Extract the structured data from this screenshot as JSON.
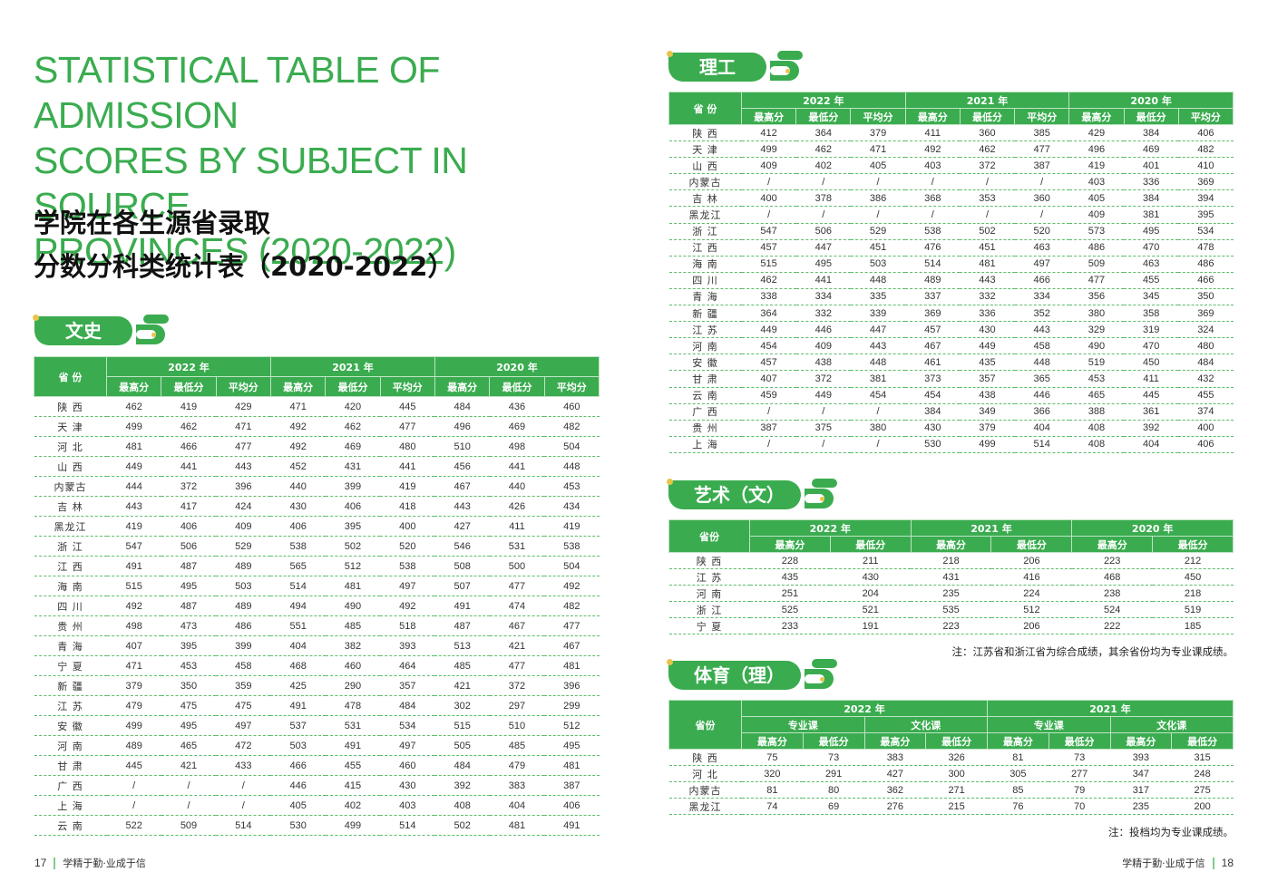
{
  "title": {
    "en": "STATISTICAL TABLE OF ADMISSION SCORES BY SUBJECT IN SOURCE PROVINCES (2020-2022)",
    "en_lines": [
      "STATISTICAL TABLE OF ADMISSION",
      "SCORES BY SUBJECT IN SOURCE",
      "PROVINCES (2020-2022)"
    ],
    "cn_lines": [
      "学院在各生源省录取",
      "分数分科类统计表（2020-2022）"
    ]
  },
  "colors": {
    "accent": "#3aac4f",
    "dot": "#e8c44a",
    "row_divider": "#5cbc69"
  },
  "labels": {
    "province": "省 份",
    "province_compact": "省份",
    "max": "最高分",
    "min": "最低分",
    "avg": "平均分",
    "major": "专业课",
    "culture": "文化课",
    "y2022": "2022 年",
    "y2021": "2021 年",
    "y2020": "2020 年"
  },
  "sections": {
    "wenshi": {
      "title": "文史",
      "rows": [
        [
          "陕 西",
          "462",
          "419",
          "429",
          "471",
          "420",
          "445",
          "484",
          "436",
          "460"
        ],
        [
          "天 津",
          "499",
          "462",
          "471",
          "492",
          "462",
          "477",
          "496",
          "469",
          "482"
        ],
        [
          "河 北",
          "481",
          "466",
          "477",
          "492",
          "469",
          "480",
          "510",
          "498",
          "504"
        ],
        [
          "山 西",
          "449",
          "441",
          "443",
          "452",
          "431",
          "441",
          "456",
          "441",
          "448"
        ],
        [
          "内蒙古",
          "444",
          "372",
          "396",
          "440",
          "399",
          "419",
          "467",
          "440",
          "453"
        ],
        [
          "吉 林",
          "443",
          "417",
          "424",
          "430",
          "406",
          "418",
          "443",
          "426",
          "434"
        ],
        [
          "黑龙江",
          "419",
          "406",
          "409",
          "406",
          "395",
          "400",
          "427",
          "411",
          "419"
        ],
        [
          "浙 江",
          "547",
          "506",
          "529",
          "538",
          "502",
          "520",
          "546",
          "531",
          "538"
        ],
        [
          "江 西",
          "491",
          "487",
          "489",
          "565",
          "512",
          "538",
          "508",
          "500",
          "504"
        ],
        [
          "海 南",
          "515",
          "495",
          "503",
          "514",
          "481",
          "497",
          "507",
          "477",
          "492"
        ],
        [
          "四 川",
          "492",
          "487",
          "489",
          "494",
          "490",
          "492",
          "491",
          "474",
          "482"
        ],
        [
          "贵 州",
          "498",
          "473",
          "486",
          "551",
          "485",
          "518",
          "487",
          "467",
          "477"
        ],
        [
          "青 海",
          "407",
          "395",
          "399",
          "404",
          "382",
          "393",
          "513",
          "421",
          "467"
        ],
        [
          "宁 夏",
          "471",
          "453",
          "458",
          "468",
          "460",
          "464",
          "485",
          "477",
          "481"
        ],
        [
          "新 疆",
          "379",
          "350",
          "359",
          "425",
          "290",
          "357",
          "421",
          "372",
          "396"
        ],
        [
          "江 苏",
          "479",
          "475",
          "475",
          "491",
          "478",
          "484",
          "302",
          "297",
          "299"
        ],
        [
          "安 徽",
          "499",
          "495",
          "497",
          "537",
          "531",
          "534",
          "515",
          "510",
          "512"
        ],
        [
          "河 南",
          "489",
          "465",
          "472",
          "503",
          "491",
          "497",
          "505",
          "485",
          "495"
        ],
        [
          "甘 肃",
          "445",
          "421",
          "433",
          "466",
          "455",
          "460",
          "484",
          "479",
          "481"
        ],
        [
          "广 西",
          "/",
          "/",
          "/",
          "446",
          "415",
          "430",
          "392",
          "383",
          "387"
        ],
        [
          "上 海",
          "/",
          "/",
          "/",
          "405",
          "402",
          "403",
          "408",
          "404",
          "406"
        ],
        [
          "云 南",
          "522",
          "509",
          "514",
          "530",
          "499",
          "514",
          "502",
          "481",
          "491"
        ]
      ]
    },
    "ligong": {
      "title": "理工",
      "rows": [
        [
          "陕 西",
          "412",
          "364",
          "379",
          "411",
          "360",
          "385",
          "429",
          "384",
          "406"
        ],
        [
          "天 津",
          "499",
          "462",
          "471",
          "492",
          "462",
          "477",
          "496",
          "469",
          "482"
        ],
        [
          "山 西",
          "409",
          "402",
          "405",
          "403",
          "372",
          "387",
          "419",
          "401",
          "410"
        ],
        [
          "内蒙古",
          "/",
          "/",
          "/",
          "/",
          "/",
          "/",
          "403",
          "336",
          "369"
        ],
        [
          "吉 林",
          "400",
          "378",
          "386",
          "368",
          "353",
          "360",
          "405",
          "384",
          "394"
        ],
        [
          "黑龙江",
          "/",
          "/",
          "/",
          "/",
          "/",
          "/",
          "409",
          "381",
          "395"
        ],
        [
          "浙 江",
          "547",
          "506",
          "529",
          "538",
          "502",
          "520",
          "573",
          "495",
          "534"
        ],
        [
          "江 西",
          "457",
          "447",
          "451",
          "476",
          "451",
          "463",
          "486",
          "470",
          "478"
        ],
        [
          "海 南",
          "515",
          "495",
          "503",
          "514",
          "481",
          "497",
          "509",
          "463",
          "486"
        ],
        [
          "四 川",
          "462",
          "441",
          "448",
          "489",
          "443",
          "466",
          "477",
          "455",
          "466"
        ],
        [
          "青 海",
          "338",
          "334",
          "335",
          "337",
          "332",
          "334",
          "356",
          "345",
          "350"
        ],
        [
          "新 疆",
          "364",
          "332",
          "339",
          "369",
          "336",
          "352",
          "380",
          "358",
          "369"
        ],
        [
          "江 苏",
          "449",
          "446",
          "447",
          "457",
          "430",
          "443",
          "329",
          "319",
          "324"
        ],
        [
          "河 南",
          "454",
          "409",
          "443",
          "467",
          "449",
          "458",
          "490",
          "470",
          "480"
        ],
        [
          "安 徽",
          "457",
          "438",
          "448",
          "461",
          "435",
          "448",
          "519",
          "450",
          "484"
        ],
        [
          "甘 肃",
          "407",
          "372",
          "381",
          "373",
          "357",
          "365",
          "453",
          "411",
          "432"
        ],
        [
          "云 南",
          "459",
          "449",
          "454",
          "454",
          "438",
          "446",
          "465",
          "445",
          "455"
        ],
        [
          "广 西",
          "/",
          "/",
          "/",
          "384",
          "349",
          "366",
          "388",
          "361",
          "374"
        ],
        [
          "贵 州",
          "387",
          "375",
          "380",
          "430",
          "379",
          "404",
          "408",
          "392",
          "400"
        ],
        [
          "上 海",
          "/",
          "/",
          "/",
          "530",
          "499",
          "514",
          "408",
          "404",
          "406"
        ]
      ]
    },
    "yishu": {
      "title": "艺术（文）",
      "note": "注：江苏省和浙江省为综合成绩，其余省份均为专业课成绩。",
      "rows": [
        [
          "陕 西",
          "228",
          "211",
          "218",
          "206",
          "223",
          "212"
        ],
        [
          "江 苏",
          "435",
          "430",
          "431",
          "416",
          "468",
          "450"
        ],
        [
          "河 南",
          "251",
          "204",
          "235",
          "224",
          "238",
          "218"
        ],
        [
          "浙 江",
          "525",
          "521",
          "535",
          "512",
          "524",
          "519"
        ],
        [
          "宁 夏",
          "233",
          "191",
          "223",
          "206",
          "222",
          "185"
        ]
      ]
    },
    "tiyu": {
      "title": "体育（理）",
      "note": "注：投档均为专业课成绩。",
      "rows": [
        [
          "陕 西",
          "75",
          "73",
          "383",
          "326",
          "81",
          "73",
          "393",
          "315"
        ],
        [
          "河 北",
          "320",
          "291",
          "427",
          "300",
          "305",
          "277",
          "347",
          "248"
        ],
        [
          "内蒙古",
          "81",
          "80",
          "362",
          "271",
          "85",
          "79",
          "317",
          "275"
        ],
        [
          "黑龙江",
          "74",
          "69",
          "276",
          "215",
          "76",
          "70",
          "235",
          "200"
        ]
      ]
    }
  },
  "footer": {
    "left_page": "17",
    "right_page": "18",
    "motto": "学精于勤·业成于信"
  }
}
